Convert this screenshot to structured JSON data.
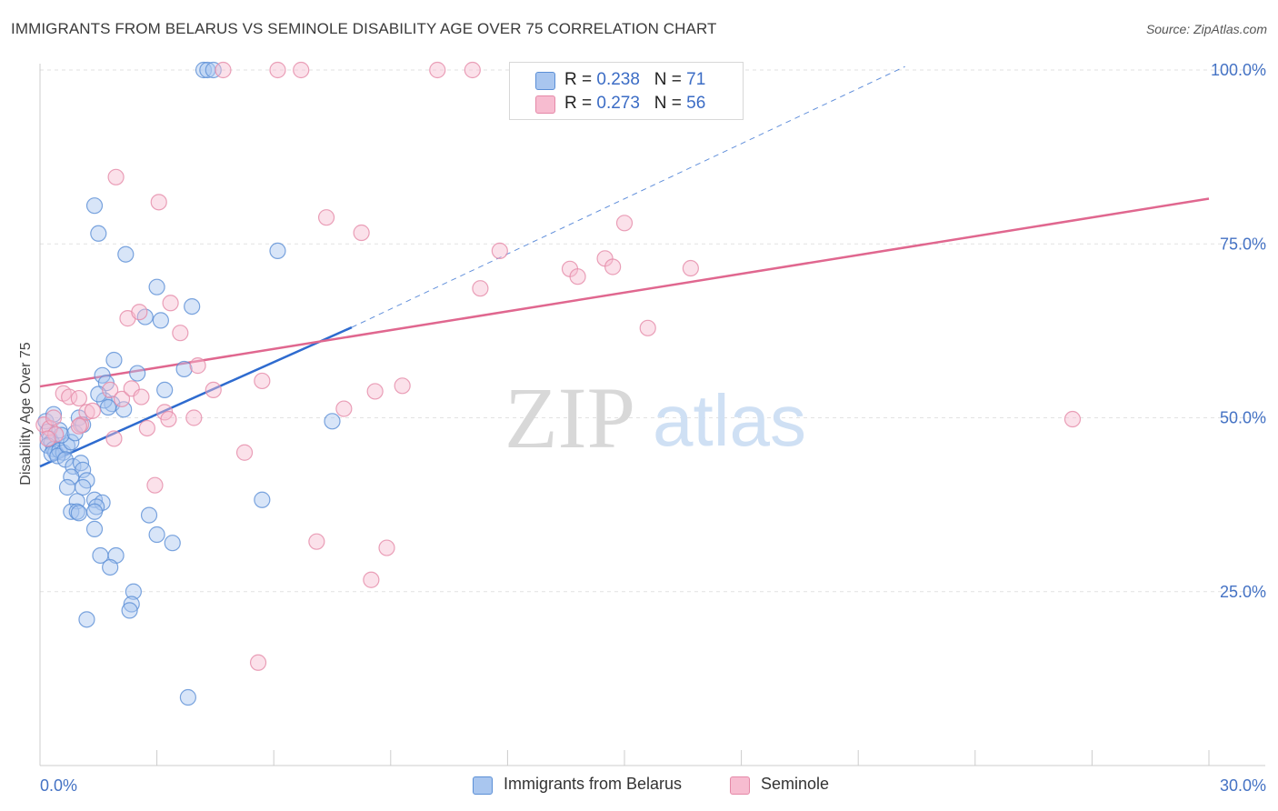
{
  "title": "IMMIGRANTS FROM BELARUS VS SEMINOLE DISABILITY AGE OVER 75 CORRELATION CHART",
  "source": "Source: ZipAtlas.com",
  "watermark": {
    "zip": "ZIP",
    "atlas": "atlas"
  },
  "legend": {
    "r_label": "R =",
    "n_label": "N =",
    "rows": [
      {
        "r": "0.238",
        "n": "71",
        "fill": "#a9c6ef",
        "stroke": "#5b8fd6"
      },
      {
        "r": "0.273",
        "n": "56",
        "fill": "#f7bcd0",
        "stroke": "#e589a8"
      }
    ]
  },
  "bottom_legend": [
    "Immigrants from Belarus",
    "Seminole"
  ],
  "colors": {
    "blue": "#5b8fd6",
    "blue_fill": "#a9c6ef",
    "pink": "#e589a8",
    "pink_fill": "#f7bcd0",
    "blue_line": "#2e6bcf",
    "pink_line": "#e0678f",
    "tick_text": "#4472c4"
  },
  "chart_data": {
    "type": "scatter",
    "title": "IMMIGRANTS FROM BELARUS VS SEMINOLE DISABILITY AGE OVER 75 CORRELATION CHART",
    "xlabel": "",
    "ylabel": "Disability Age Over 75",
    "xlim": [
      0,
      30
    ],
    "ylim": [
      0,
      105
    ],
    "x_ticks": [
      "0.0%",
      "30.0%"
    ],
    "y_ticks": [
      {
        "value": 25,
        "label": "25.0%"
      },
      {
        "value": 50,
        "label": "50.0%"
      },
      {
        "value": 75,
        "label": "75.0%"
      },
      {
        "value": 100,
        "label": "100.0%"
      }
    ],
    "grid": true,
    "legend_position": "top-center",
    "series": [
      {
        "name": "Immigrants from Belarus",
        "color": "#5b8fd6",
        "points": [
          [
            0.15,
            49.5
          ],
          [
            0.2,
            48
          ],
          [
            0.25,
            47
          ],
          [
            0.3,
            46.5
          ],
          [
            0.2,
            46
          ],
          [
            0.35,
            45.5
          ],
          [
            0.4,
            45
          ],
          [
            0.3,
            44.8
          ],
          [
            0.5,
            45.3
          ],
          [
            0.6,
            45
          ],
          [
            0.45,
            44.5
          ],
          [
            0.7,
            46
          ],
          [
            0.8,
            46.5
          ],
          [
            0.35,
            50.5
          ],
          [
            0.5,
            48.2
          ],
          [
            0.55,
            47.5
          ],
          [
            0.9,
            47.8
          ],
          [
            1.0,
            50
          ],
          [
            1.1,
            49
          ],
          [
            0.65,
            44
          ],
          [
            0.85,
            43
          ],
          [
            1.05,
            43.5
          ],
          [
            1.1,
            42.5
          ],
          [
            0.8,
            41.5
          ],
          [
            1.2,
            41
          ],
          [
            0.7,
            40
          ],
          [
            1.1,
            40
          ],
          [
            0.95,
            38
          ],
          [
            1.4,
            38.2
          ],
          [
            1.6,
            37.8
          ],
          [
            1.45,
            37.2
          ],
          [
            0.8,
            36.5
          ],
          [
            0.95,
            36.5
          ],
          [
            1.0,
            36.3
          ],
          [
            1.4,
            36.5
          ],
          [
            2.8,
            36
          ],
          [
            1.4,
            34
          ],
          [
            3.0,
            33.2
          ],
          [
            3.4,
            32
          ],
          [
            1.55,
            30.2
          ],
          [
            1.95,
            30.2
          ],
          [
            1.8,
            28.5
          ],
          [
            2.4,
            25
          ],
          [
            2.35,
            23.2
          ],
          [
            2.3,
            22.3
          ],
          [
            1.2,
            21
          ],
          [
            3.8,
            9.8
          ],
          [
            1.4,
            80.5
          ],
          [
            1.5,
            76.5
          ],
          [
            2.2,
            73.5
          ],
          [
            3.0,
            68.8
          ],
          [
            3.9,
            66
          ],
          [
            2.7,
            64.5
          ],
          [
            3.1,
            64
          ],
          [
            1.9,
            58.3
          ],
          [
            2.5,
            56.4
          ],
          [
            3.7,
            57
          ],
          [
            1.6,
            56.1
          ],
          [
            1.7,
            55
          ],
          [
            1.85,
            52
          ],
          [
            3.2,
            54
          ],
          [
            1.65,
            52.5
          ],
          [
            1.75,
            51.5
          ],
          [
            2.15,
            51.2
          ],
          [
            1.5,
            53.4
          ],
          [
            6.1,
            74
          ],
          [
            5.7,
            38.2
          ],
          [
            7.5,
            49.5
          ],
          [
            4.2,
            100
          ],
          [
            4.3,
            100
          ],
          [
            4.45,
            100
          ]
        ]
      },
      {
        "name": "Seminole",
        "color": "#e589a8",
        "points": [
          [
            0.1,
            49
          ],
          [
            0.25,
            48.5
          ],
          [
            0.35,
            50
          ],
          [
            0.4,
            47.6
          ],
          [
            0.2,
            47
          ],
          [
            0.6,
            53.5
          ],
          [
            0.75,
            53
          ],
          [
            1.0,
            52.8
          ],
          [
            1.05,
            49
          ],
          [
            1.2,
            50.8
          ],
          [
            1.35,
            51
          ],
          [
            1.8,
            54
          ],
          [
            1.9,
            47
          ],
          [
            2.1,
            52.7
          ],
          [
            2.35,
            54.2
          ],
          [
            2.6,
            53
          ],
          [
            2.75,
            48.5
          ],
          [
            2.95,
            40.3
          ],
          [
            3.2,
            50.8
          ],
          [
            3.3,
            49.8
          ],
          [
            3.95,
            50
          ],
          [
            4.05,
            57.5
          ],
          [
            4.45,
            54
          ],
          [
            2.25,
            64.3
          ],
          [
            2.55,
            65.2
          ],
          [
            3.35,
            66.5
          ],
          [
            3.6,
            62.2
          ],
          [
            1.95,
            84.6
          ],
          [
            3.05,
            81
          ],
          [
            5.25,
            45
          ],
          [
            5.7,
            55.3
          ],
          [
            7.1,
            32.2
          ],
          [
            7.35,
            78.8
          ],
          [
            7.8,
            51.3
          ],
          [
            8.25,
            76.6
          ],
          [
            8.5,
            26.7
          ],
          [
            8.6,
            53.8
          ],
          [
            8.9,
            31.3
          ],
          [
            9.3,
            54.6
          ],
          [
            11.3,
            68.6
          ],
          [
            11.8,
            74
          ],
          [
            13.6,
            71.4
          ],
          [
            13.8,
            70.3
          ],
          [
            14.5,
            72.9
          ],
          [
            14.7,
            71.7
          ],
          [
            15.0,
            78
          ],
          [
            15.6,
            62.9
          ],
          [
            16.7,
            71.5
          ],
          [
            26.5,
            49.8
          ],
          [
            5.6,
            14.8
          ],
          [
            4.7,
            100
          ],
          [
            6.1,
            100
          ],
          [
            6.7,
            100
          ],
          [
            10.2,
            100
          ],
          [
            11.1,
            100
          ],
          [
            1.0,
            48.8
          ]
        ]
      }
    ],
    "trendlines": [
      {
        "series": "Immigrants from Belarus",
        "x": [
          0,
          8
        ],
        "y": [
          43.0,
          63.0
        ],
        "style": "solid"
      },
      {
        "series": "Immigrants from Belarus",
        "x": [
          8,
          22.2
        ],
        "y": [
          63.0,
          100.5
        ],
        "style": "dashed"
      },
      {
        "series": "Seminole",
        "x": [
          0,
          30
        ],
        "y": [
          54.5,
          81.5
        ],
        "style": "solid"
      }
    ]
  }
}
